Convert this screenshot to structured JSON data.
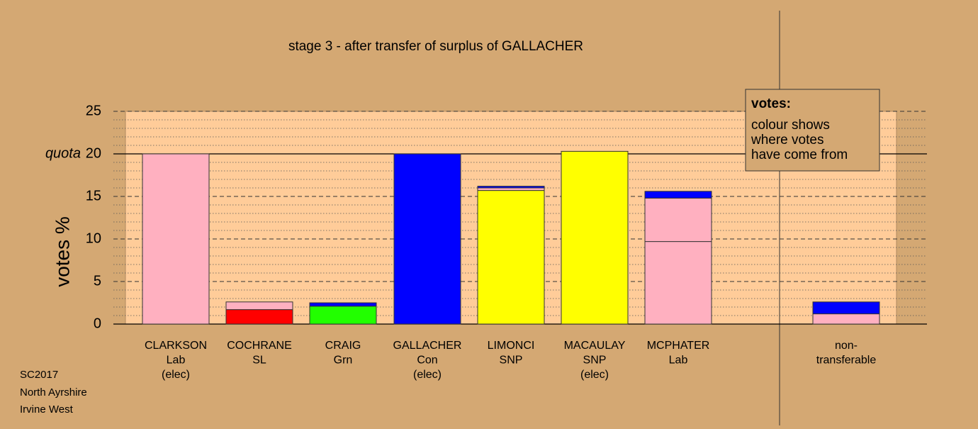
{
  "chart_data": {
    "type": "stacked_bar",
    "title": "stage 3 - after transfer of surplus of GALLACHER",
    "ylabel": "votes %",
    "ylim": [
      0,
      25
    ],
    "yticks": [
      0,
      5,
      10,
      15,
      20,
      25
    ],
    "minor_yticks": [
      1,
      2,
      3,
      4,
      6,
      7,
      8,
      9,
      11,
      12,
      13,
      14,
      16,
      17,
      18,
      19,
      21,
      22,
      23,
      24
    ],
    "quota": 20,
    "quota_label": "quota",
    "grid": true,
    "categories": [
      [
        "CLARKSON",
        "Lab",
        "(elec)"
      ],
      [
        "COCHRANE",
        "SL"
      ],
      [
        "CRAIG",
        "Grn"
      ],
      [
        "GALLACHER",
        "Con",
        "(elec)"
      ],
      [
        "LIMONCI",
        "SNP"
      ],
      [
        "MACAULAY",
        "SNP",
        "(elec)"
      ],
      [
        "MCPHATER",
        "Lab"
      ],
      [
        "non-",
        "transferable"
      ]
    ],
    "bars": [
      {
        "segments": [
          {
            "color": "#ffb0c0",
            "value": 20.0
          }
        ]
      },
      {
        "segments": [
          {
            "color": "#ff0000",
            "value": 1.7
          },
          {
            "color": "#ffb0c0",
            "value": 0.9
          }
        ]
      },
      {
        "segments": [
          {
            "color": "#22ff00",
            "value": 2.1
          },
          {
            "color": "#0000ff",
            "value": 0.4
          }
        ]
      },
      {
        "segments": [
          {
            "color": "#0000ff",
            "value": 20.0
          }
        ]
      },
      {
        "segments": [
          {
            "color": "#ffff00",
            "value": 15.7
          },
          {
            "color": "#ffb0c0",
            "value": 0.3
          },
          {
            "color": "#0000ff",
            "value": 0.2
          }
        ]
      },
      {
        "segments": [
          {
            "color": "#ffff00",
            "value": 20.3
          }
        ]
      },
      {
        "segments": [
          {
            "color": "#ffb0c0",
            "value": 9.7
          },
          {
            "color": "#ffb0c0",
            "value": 5.1
          },
          {
            "color": "#0000ff",
            "value": 0.8
          }
        ]
      },
      {
        "segments": [
          {
            "color": "#ffb0c0",
            "value": 1.2
          },
          {
            "color": "#0000ff",
            "value": 1.4
          }
        ]
      }
    ],
    "legend": {
      "title": "votes:",
      "lines": [
        "colour shows",
        "where votes",
        "have come from"
      ]
    },
    "footer": [
      "SC2017",
      "North Ayrshire",
      "Irvine West"
    ]
  }
}
